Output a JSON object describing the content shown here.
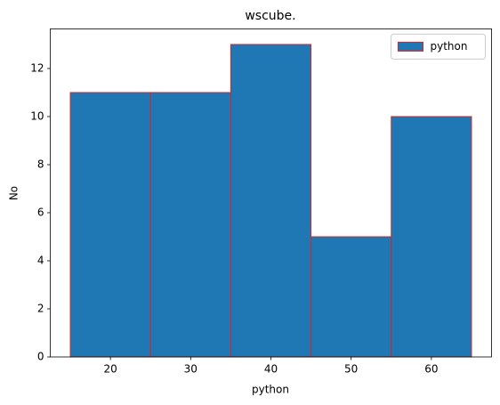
{
  "chart_data": {
    "type": "histogram",
    "title": "wscube.",
    "x_label": "python",
    "y_label": "No",
    "bins": [
      15,
      25,
      35,
      45,
      55,
      65
    ],
    "series": [
      {
        "name": "python",
        "color": "#1f77b4",
        "edgecolor": "#d62728",
        "values": [
          11,
          11,
          13,
          5,
          10
        ]
      }
    ],
    "xlim": [
      12.5,
      67.5
    ],
    "xticks": [
      20,
      30,
      40,
      50,
      60
    ],
    "ylim": [
      0,
      13.65
    ],
    "yticks": [
      0,
      2,
      4,
      6,
      8,
      10,
      12
    ],
    "grid": false,
    "legend": "upper right"
  }
}
